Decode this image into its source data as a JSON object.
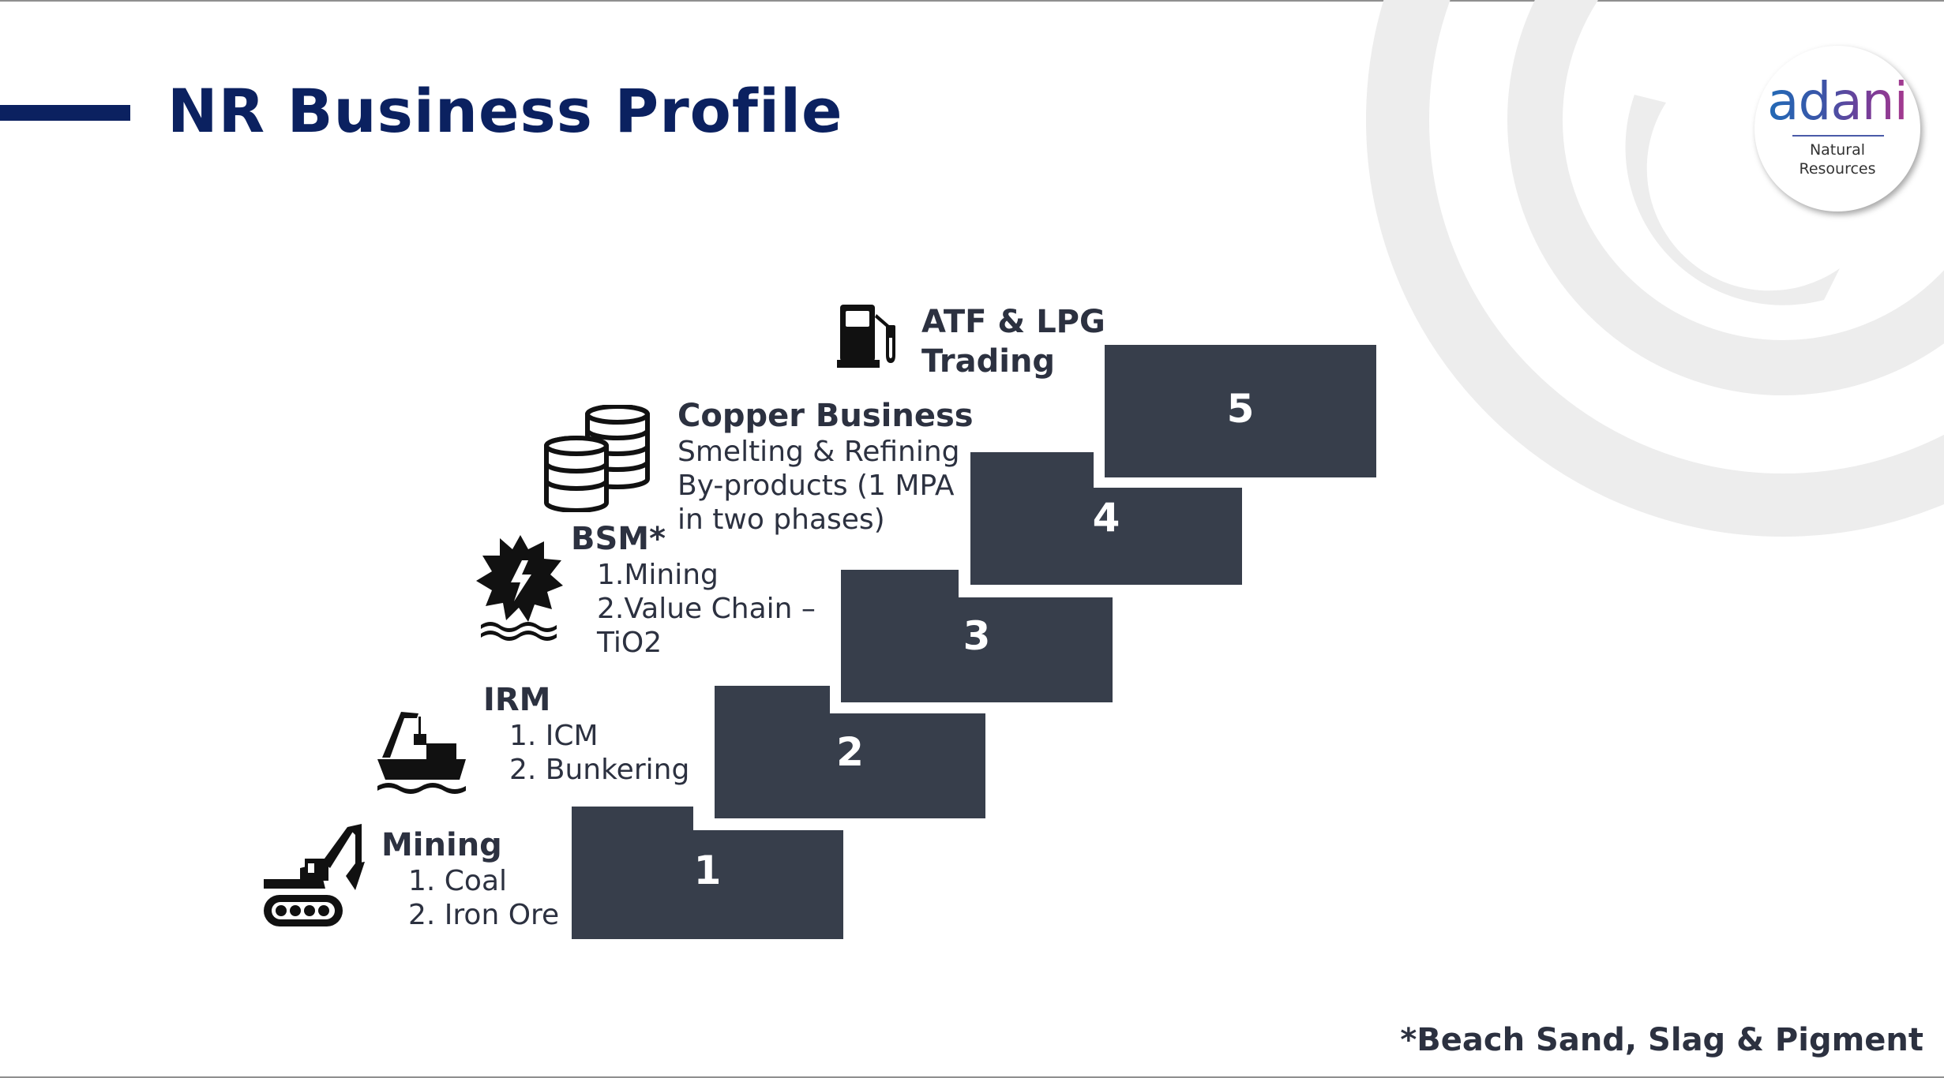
{
  "page": {
    "title": "NR Business Profile"
  },
  "logo": {
    "word": "adani",
    "sub_line1": "Natural",
    "sub_line2": "Resources"
  },
  "colors": {
    "title_navy": "#0b2160",
    "step_fill": "#373e4b",
    "label_text": "#2c3140",
    "deco_arcs": "#ededed"
  },
  "steps": [
    {
      "number": "1",
      "icon": "excavator-icon",
      "heading": "Mining",
      "lines": [
        "1.  Coal",
        "2.  Iron Ore"
      ]
    },
    {
      "number": "2",
      "icon": "cargo-ship-crane-icon",
      "heading": "IRM",
      "lines": [
        "1.  ICM",
        "2.  Bunkering"
      ]
    },
    {
      "number": "3",
      "icon": "sand-mill-wheel-icon",
      "heading": "BSM*",
      "lines": [
        "1.Mining",
        "2.Value Chain –",
        "TiO2"
      ]
    },
    {
      "number": "4",
      "icon": "copper-coin-stacks-icon",
      "heading": "Copper Business",
      "lines": [
        "Smelting & Refining",
        "By-products  (1 MPA",
        "in two phases)"
      ]
    },
    {
      "number": "5",
      "icon": "fuel-pump-icon",
      "heading": "ATF & LPG",
      "lines": [
        "Trading"
      ]
    }
  ],
  "footnote": "*Beach Sand, Slag & Pigment"
}
